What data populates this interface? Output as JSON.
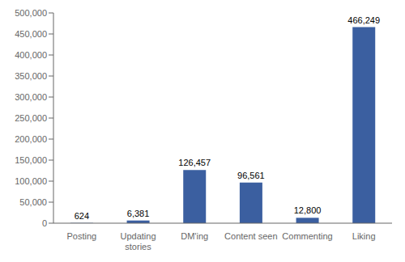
{
  "chart_data": {
    "type": "bar",
    "categories": [
      "Posting",
      "Updating\nstories",
      "DM'ing",
      "Content seen",
      "Commenting",
      "Liking"
    ],
    "values": [
      624,
      6381,
      126457,
      96561,
      12800,
      466249
    ],
    "value_labels": [
      "624",
      "6,381",
      "126,457",
      "96,561",
      "12,800",
      "466,249"
    ],
    "color": "#3B5FA0",
    "ylim": [
      0,
      500000
    ],
    "yticks": [
      0,
      {
        "value": 50000,
        "label": "50,000"
      },
      {
        "value": 100000,
        "label": "100,000"
      },
      {
        "value": 150000,
        "label": "150,000"
      },
      {
        "value": 200000,
        "label": "200,000"
      },
      {
        "value": 250000,
        "label": "250,000"
      },
      {
        "value": 300000,
        "label": "300,000"
      },
      {
        "value": 350000,
        "label": "350,000"
      },
      {
        "value": 400000,
        "label": "400,000"
      },
      {
        "value": 450000,
        "label": "450,000"
      },
      {
        "value": 500000,
        "label": "500,000"
      }
    ],
    "grid": false,
    "data_labels": true
  }
}
